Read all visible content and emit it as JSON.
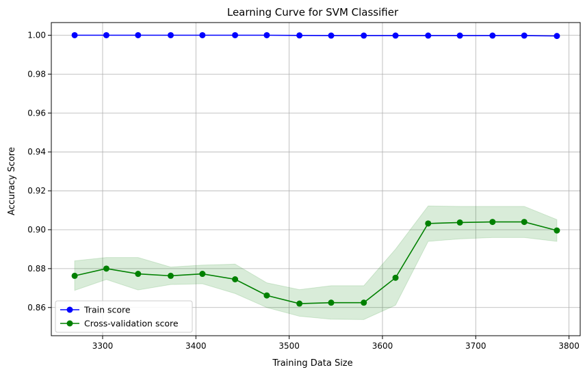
{
  "chart_data": {
    "type": "line",
    "title": "Learning Curve for SVM Classifier",
    "xlabel": "Training Data Size",
    "ylabel": "Accuracy Score",
    "xlim": [
      3245,
      3812
    ],
    "ylim": [
      0.8455,
      1.0065
    ],
    "xticks": [
      3300,
      3400,
      3500,
      3600,
      3700,
      3800
    ],
    "xtick_labels": [
      "3300",
      "3400",
      "3500",
      "3600",
      "3700",
      "3800"
    ],
    "yticks": [
      0.86,
      0.88,
      0.9,
      0.92,
      0.94,
      0.96,
      0.98,
      1.0
    ],
    "ytick_labels": [
      "0.86",
      "0.88",
      "0.90",
      "0.92",
      "0.94",
      "0.96",
      "0.98",
      "1.00"
    ],
    "grid": true,
    "legend_position": "lower-left",
    "x": [
      3270,
      3304,
      3338,
      3373,
      3407,
      3442,
      3476,
      3511,
      3545,
      3580,
      3614,
      3649,
      3683,
      3718,
      3752,
      3787
    ],
    "series": [
      {
        "name": "Train score",
        "color": "#0000ff",
        "marker": "circle",
        "values": [
          1.0,
          1.0,
          1.0,
          1.0,
          1.0,
          1.0,
          1.0,
          0.9999,
          0.9998,
          0.9998,
          0.9998,
          0.9998,
          0.9998,
          0.9998,
          0.9998,
          0.9996
        ]
      },
      {
        "name": "Cross-validation score",
        "color": "#008000",
        "marker": "circle",
        "values": [
          0.8763,
          0.88,
          0.8773,
          0.8763,
          0.8773,
          0.8745,
          0.8662,
          0.862,
          0.8625,
          0.8625,
          0.8753,
          0.9032,
          0.9037,
          0.904,
          0.904,
          0.8996
        ],
        "band_lower": [
          0.8688,
          0.8744,
          0.869,
          0.8718,
          0.8722,
          0.8672,
          0.86,
          0.8555,
          0.854,
          0.8538,
          0.8612,
          0.894,
          0.8953,
          0.896,
          0.896,
          0.894
        ],
        "band_upper": [
          0.884,
          0.8857,
          0.8857,
          0.8808,
          0.8818,
          0.8823,
          0.8727,
          0.8692,
          0.8712,
          0.8712,
          0.89,
          0.9122,
          0.912,
          0.912,
          0.912,
          0.9052
        ],
        "band_color": "#008000",
        "band_opacity": 0.15
      }
    ]
  }
}
